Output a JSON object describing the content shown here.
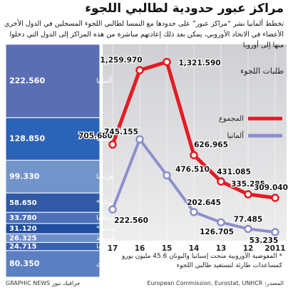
{
  "title": "مراكز عبور حدودية لطالبي اللجوء",
  "subtitle": "تخطط ألمانيا نشر “مراكز عبور” على حدودها مع النمسا لطالبي اللجوء المسجلين في الدول الأخرى الأعضاء في الاتحاد الأوروبي، يمكن بعد ذلك إعادتهم مباشرة من هذه المراكز إلى الدول التي دخلوا منها إلى أوروبا",
  "chart_data": [
    {
      "type": "proportion",
      "categories": [
        "ألمانيا",
        "إيطاليا",
        "فرنسا",
        "اليونان*",
        "بريطانيا",
        "إسبانيا*",
        "السويد",
        "النمسا",
        "دول أخرى"
      ],
      "values": [
        222560,
        128850,
        99330,
        58650,
        33780,
        31120,
        26325,
        24715,
        80350
      ],
      "value_labels": [
        "222.560",
        "128.850",
        "99.330",
        "58.650",
        "33.780",
        "31.120",
        "26.325",
        "24.715",
        "80.350"
      ],
      "colors": [
        "#5a6fb3",
        "#2b63b9",
        "#7393cb",
        "#3159a8",
        "#4d70b8",
        "#1f4d9f",
        "#6d8ec9",
        "#3a60ad",
        "#5c7fc1"
      ]
    },
    {
      "type": "line",
      "y_label": "طلبات اللجوء",
      "categories": [
        "17",
        "16",
        "15",
        "14",
        "13",
        "12",
        "2011"
      ],
      "ylim": [
        0,
        1400000
      ],
      "series": [
        {
          "name": "المجموع",
          "color": "#e31b23",
          "values": [
            705680,
            1259970,
            1321590,
            626965,
            431085,
            335285,
            309040
          ],
          "value_labels": [
            "705.680",
            "1,259.970",
            "1,321.590",
            "626.965",
            "431.085",
            "335.285",
            "309.040"
          ]
        },
        {
          "name": "ألمانيا",
          "color": "#8c8fcc",
          "values": [
            222560,
            745155,
            476510,
            202645,
            126705,
            77485,
            53235
          ],
          "value_labels": [
            "222.560",
            "745.155",
            "476.510",
            "202.645",
            "126.705",
            "77.485",
            "53.235"
          ]
        }
      ]
    }
  ],
  "footnote": "* المفوضية الأوروبية منحت إسبانيا واليونان 45.6 مليون يورو كمساعدات طارئة لتستعيد طالبي اللجوء",
  "source": "المصدر: European Commission, Eurostat, UNHCR",
  "credit": "GRAPHIC NEWS جرافيك نيوز"
}
